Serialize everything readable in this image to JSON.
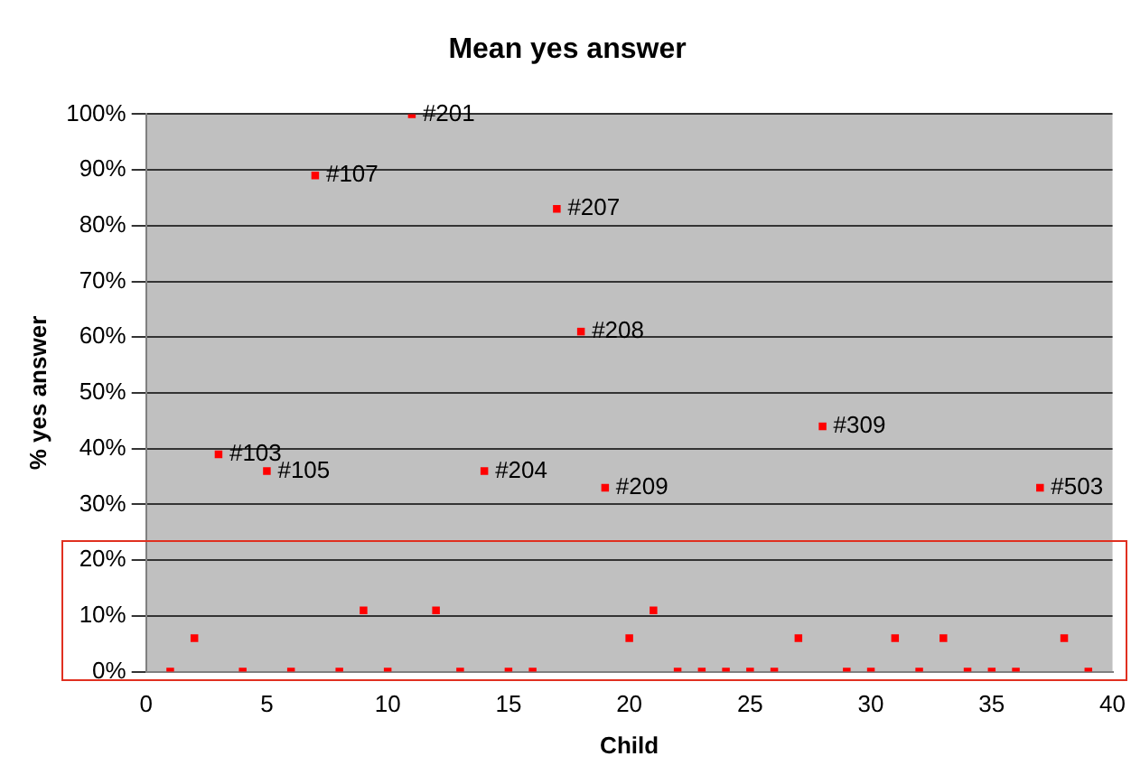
{
  "chart_data": {
    "type": "scatter",
    "title": "Mean yes answer",
    "xlabel": "Child",
    "ylabel": "% yes answer",
    "x": [
      1,
      2,
      3,
      4,
      5,
      6,
      7,
      8,
      9,
      10,
      11,
      12,
      13,
      14,
      15,
      16,
      17,
      18,
      19,
      20,
      21,
      22,
      23,
      24,
      25,
      26,
      27,
      28,
      29,
      30,
      31,
      32,
      33,
      34,
      35,
      36,
      37,
      38,
      39
    ],
    "series": [
      {
        "color": "#ff0000",
        "values": [
          0,
          6,
          39,
          0,
          36,
          0,
          89,
          0,
          11,
          0,
          100,
          11,
          0,
          36,
          0,
          0,
          83,
          61,
          33,
          6,
          11,
          0,
          0,
          0,
          0,
          0,
          6,
          44,
          0,
          0,
          6,
          0,
          6,
          0,
          0,
          0,
          33,
          6,
          0
        ]
      }
    ],
    "marker": "square",
    "grid": "y",
    "legend": false,
    "xlim": [
      0,
      40
    ],
    "xticks": [
      0,
      5,
      10,
      15,
      20,
      25,
      30,
      35,
      40
    ],
    "ylim": [
      0,
      100
    ],
    "yticks": [
      {
        "value": 0,
        "label": "0%"
      },
      {
        "value": 10,
        "label": "10%"
      },
      {
        "value": 20,
        "label": "20%"
      },
      {
        "value": 30,
        "label": "30%"
      },
      {
        "value": 40,
        "label": "40%"
      },
      {
        "value": 50,
        "label": "50%"
      },
      {
        "value": 60,
        "label": "60%"
      },
      {
        "value": 70,
        "label": "70%"
      },
      {
        "value": 80,
        "label": "80%"
      },
      {
        "value": 90,
        "label": "90%"
      },
      {
        "value": 100,
        "label": "100%"
      }
    ],
    "annotations": [
      {
        "text": "#103",
        "x": 3,
        "y": 39
      },
      {
        "text": "#105",
        "x": 5,
        "y": 36
      },
      {
        "text": "#107",
        "x": 7,
        "y": 89
      },
      {
        "text": "#201",
        "x": 11,
        "y": 100
      },
      {
        "text": "#204",
        "x": 14,
        "y": 36
      },
      {
        "text": "#207",
        "x": 17,
        "y": 83
      },
      {
        "text": "#208",
        "x": 18,
        "y": 61
      },
      {
        "text": "#209",
        "x": 19,
        "y": 33
      },
      {
        "text": "#309",
        "x": 28,
        "y": 44
      },
      {
        "text": "#503",
        "x": 37,
        "y": 33
      }
    ]
  }
}
